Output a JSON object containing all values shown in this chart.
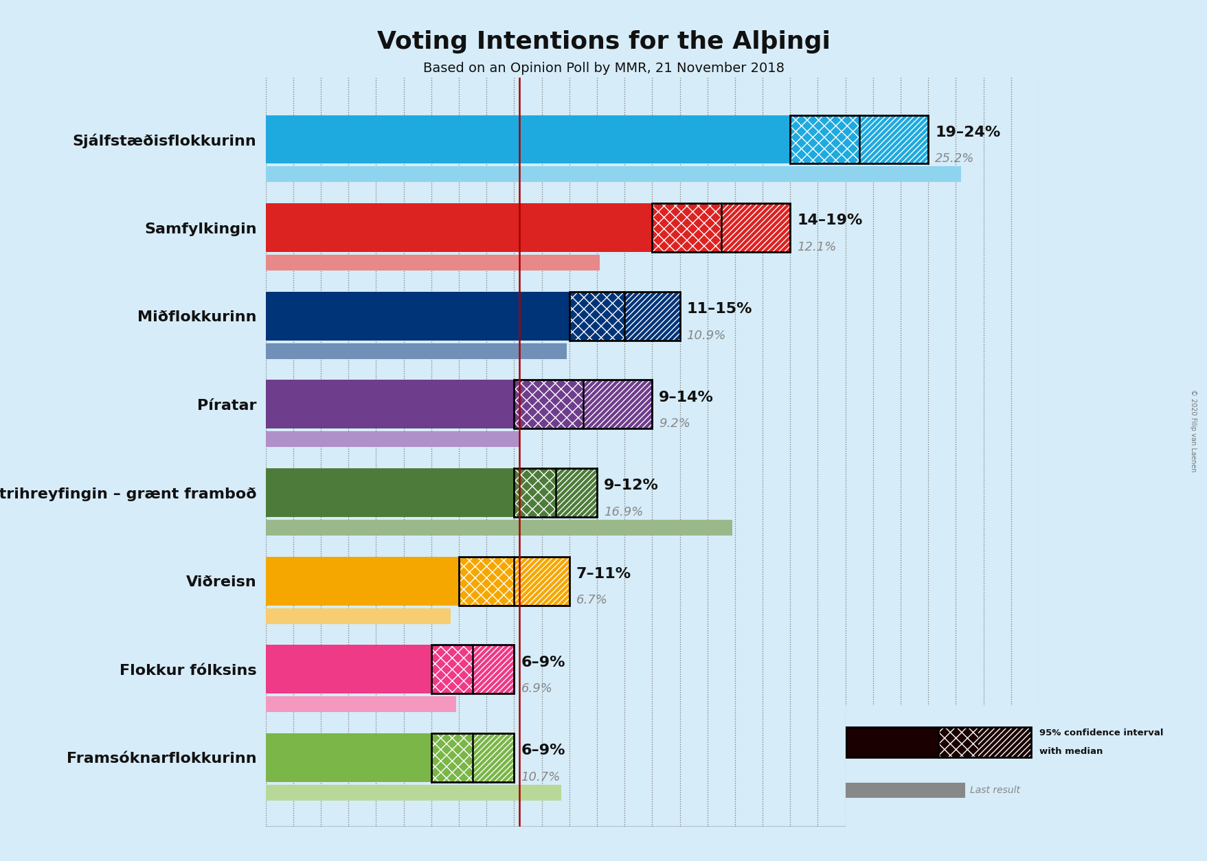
{
  "title": "Voting Intentions for the Alþingi",
  "subtitle": "Based on an Opinion Poll by MMR, 21 November 2018",
  "copyright": "© 2020 Filip van Laenen",
  "background_color": "#d6ecf8",
  "parties": [
    {
      "name": "Sjálfstæðisflokkurinn",
      "color": "#1eaadf",
      "color_light": "#8fd4ef",
      "low": 19,
      "high": 24,
      "median": 21.5,
      "last": 25.2,
      "label": "19–24%",
      "last_label": "25.2%"
    },
    {
      "name": "Samfylkingin",
      "color": "#dd2222",
      "color_light": "#e88888",
      "low": 14,
      "high": 19,
      "median": 16.5,
      "last": 12.1,
      "label": "14–19%",
      "last_label": "12.1%"
    },
    {
      "name": "Miðflokkurinn",
      "color": "#003478",
      "color_light": "#7090b8",
      "low": 11,
      "high": 15,
      "median": 13,
      "last": 10.9,
      "label": "11–15%",
      "last_label": "10.9%"
    },
    {
      "name": "Píratar",
      "color": "#6e3d8c",
      "color_light": "#b090c8",
      "low": 9,
      "high": 14,
      "median": 11.5,
      "last": 9.2,
      "label": "9–14%",
      "last_label": "9.2%"
    },
    {
      "name": "Vinstrihreyfingin – grænt framboð",
      "color": "#4d7c3a",
      "color_light": "#9ab88a",
      "low": 9,
      "high": 12,
      "median": 10.5,
      "last": 16.9,
      "label": "9–12%",
      "last_label": "16.9%"
    },
    {
      "name": "Viðreisn",
      "color": "#f5a700",
      "color_light": "#f8cc70",
      "low": 7,
      "high": 11,
      "median": 9,
      "last": 6.7,
      "label": "7–11%",
      "last_label": "6.7%"
    },
    {
      "name": "Flokkur fólksins",
      "color": "#ee3a87",
      "color_light": "#f498c0",
      "low": 6,
      "high": 9,
      "median": 7.5,
      "last": 6.9,
      "label": "6–9%",
      "last_label": "6.9%"
    },
    {
      "name": "Framsóknarflokkurinn",
      "color": "#7ab648",
      "color_light": "#b8d898",
      "low": 6,
      "high": 9,
      "median": 7.5,
      "last": 10.7,
      "label": "6–9%",
      "last_label": "10.7%"
    }
  ],
  "ref_line_x": 9.2,
  "median_line_color": "#aa0000",
  "axis_max": 28,
  "bar_height": 0.55,
  "last_bar_height": 0.18,
  "title_fontsize": 26,
  "subtitle_fontsize": 14,
  "label_fontsize": 16,
  "last_label_fontsize": 13
}
